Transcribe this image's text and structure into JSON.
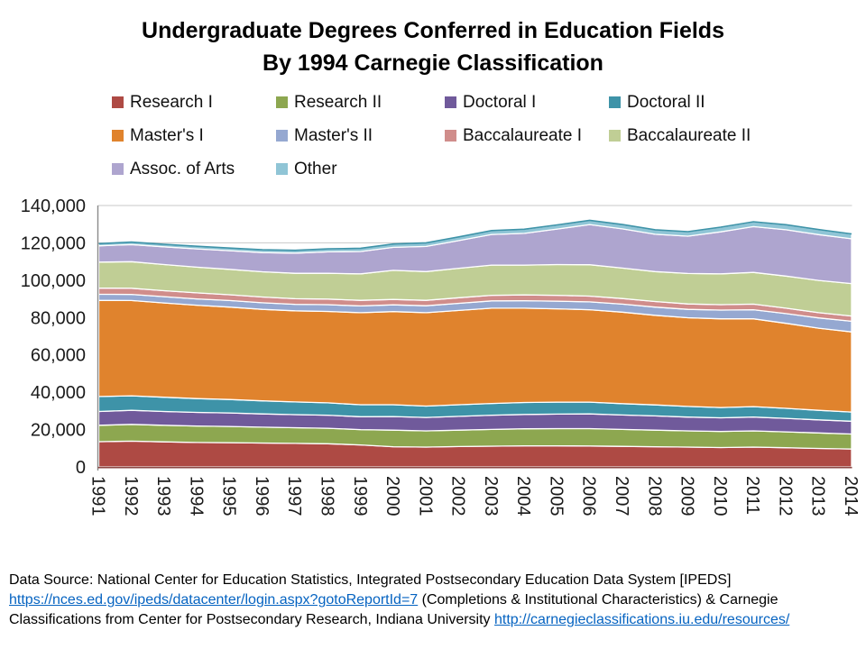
{
  "title": {
    "line1": "Undergraduate Degrees Conferred in Education Fields",
    "line2": "By 1994 Carnegie Classification"
  },
  "chart_data": {
    "type": "area",
    "stacked": true,
    "title": "Undergraduate Degrees Conferred in Education Fields By 1994 Carnegie Classification",
    "xlabel": "",
    "ylabel": "",
    "grid": "horizontal",
    "legend_position": "top",
    "ylim": [
      0,
      140000
    ],
    "ytick_step": 20000,
    "ytick_labels": [
      "0",
      "20,000",
      "40,000",
      "60,000",
      "80,000",
      "100,000",
      "120,000",
      "140,000"
    ],
    "x": [
      1991,
      1992,
      1993,
      1994,
      1995,
      1996,
      1997,
      1998,
      1999,
      2000,
      2001,
      2002,
      2003,
      2004,
      2005,
      2006,
      2007,
      2008,
      2009,
      2010,
      2011,
      2012,
      2013,
      2014
    ],
    "series": [
      {
        "name": "Research I",
        "color": "#AE4A44",
        "values": [
          13500,
          13800,
          13400,
          13100,
          13000,
          12800,
          12600,
          12400,
          11800,
          10800,
          10600,
          10900,
          11100,
          11300,
          11300,
          11200,
          11000,
          10800,
          10600,
          10400,
          10600,
          10300,
          9900,
          9600
        ]
      },
      {
        "name": "Research II",
        "color": "#8DA750",
        "values": [
          8800,
          9000,
          8900,
          8800,
          8700,
          8500,
          8400,
          8300,
          8200,
          8900,
          8700,
          8800,
          9000,
          9100,
          9200,
          9300,
          9100,
          8900,
          8700,
          8600,
          8700,
          8500,
          8300,
          8000
        ]
      },
      {
        "name": "Doctoral I",
        "color": "#705A9B",
        "values": [
          7400,
          7500,
          7400,
          7300,
          7200,
          7100,
          7000,
          7000,
          6900,
          7300,
          7200,
          7400,
          7600,
          7700,
          7800,
          7900,
          7700,
          7600,
          7400,
          7300,
          7400,
          7200,
          7000,
          6900
        ]
      },
      {
        "name": "Doctoral II",
        "color": "#3E93A8",
        "values": [
          8000,
          7800,
          7600,
          7400,
          7200,
          7000,
          6800,
          6600,
          6400,
          6300,
          6100,
          6200,
          6300,
          6400,
          6400,
          6300,
          6100,
          5900,
          5700,
          5500,
          5600,
          5400,
          5100,
          4900
        ]
      },
      {
        "name": "Master's I",
        "color": "#E0832D",
        "values": [
          51500,
          51000,
          50500,
          50000,
          49500,
          49000,
          48800,
          49000,
          49300,
          49900,
          50000,
          50500,
          51000,
          50500,
          50000,
          49500,
          49000,
          48000,
          47500,
          47500,
          47000,
          45500,
          44000,
          42900
        ]
      },
      {
        "name": "Master's II",
        "color": "#95A8D1",
        "values": [
          3300,
          3300,
          3400,
          3400,
          3500,
          3500,
          3500,
          3600,
          3600,
          3600,
          3700,
          3800,
          3900,
          4000,
          4100,
          4200,
          4300,
          4400,
          4500,
          4700,
          4900,
          5200,
          5500,
          5700
        ]
      },
      {
        "name": "Baccalaureate I",
        "color": "#D08D8B",
        "values": [
          3300,
          3300,
          3200,
          3200,
          3100,
          3100,
          3000,
          3000,
          3000,
          2900,
          2900,
          3000,
          3000,
          3100,
          3100,
          3100,
          3000,
          3000,
          2900,
          2900,
          3000,
          2900,
          2800,
          2800
        ]
      },
      {
        "name": "Baccalaureate II",
        "color": "#C0CE95",
        "values": [
          13900,
          14200,
          14000,
          13800,
          13600,
          13500,
          13600,
          13800,
          14200,
          15600,
          15400,
          15800,
          16200,
          16000,
          16500,
          16800,
          16300,
          16000,
          16300,
          16500,
          17000,
          17200,
          17300,
          17400
        ]
      },
      {
        "name": "Assoc. of Arts",
        "color": "#AEA5CF",
        "values": [
          8700,
          9200,
          9500,
          9800,
          10000,
          10300,
          10800,
          11500,
          12000,
          12300,
          13500,
          14800,
          16400,
          17000,
          19000,
          21500,
          21000,
          20000,
          20000,
          22500,
          24500,
          24800,
          24500,
          24000
        ]
      },
      {
        "name": "Other",
        "color": "#90C5D6",
        "values": [
          1200,
          1300,
          1300,
          1400,
          1400,
          1500,
          1500,
          1600,
          1700,
          1800,
          1900,
          2000,
          2100,
          2200,
          2200,
          2300,
          2300,
          2400,
          2400,
          2500,
          2600,
          2700,
          2700,
          2600
        ]
      }
    ]
  },
  "colors": {
    "gridline": "#C9C9C9",
    "axis": "#8A8A8A",
    "baseline": "#8B4844",
    "top_edge": "#3E93A8",
    "area_separator": "#FFFFFF",
    "link": "#0563C1",
    "tick_text": "#1A1A1A"
  },
  "footer": {
    "line1": "Data Source: National Center for Education Statistics, Integrated Postsecondary Education Data System [IPEDS]",
    "line2_link": "https://nces.ed.gov/ipeds/datacenter/login.aspx?gotoReportId=7",
    "line2_rest": " (Completions & Institutional Characteristics) & Carnegie",
    "line3_pre": "Classifications from Center for Postsecondary Research, Indiana University ",
    "line3_link": "http://carnegieclassifications.iu.edu/resources/"
  }
}
